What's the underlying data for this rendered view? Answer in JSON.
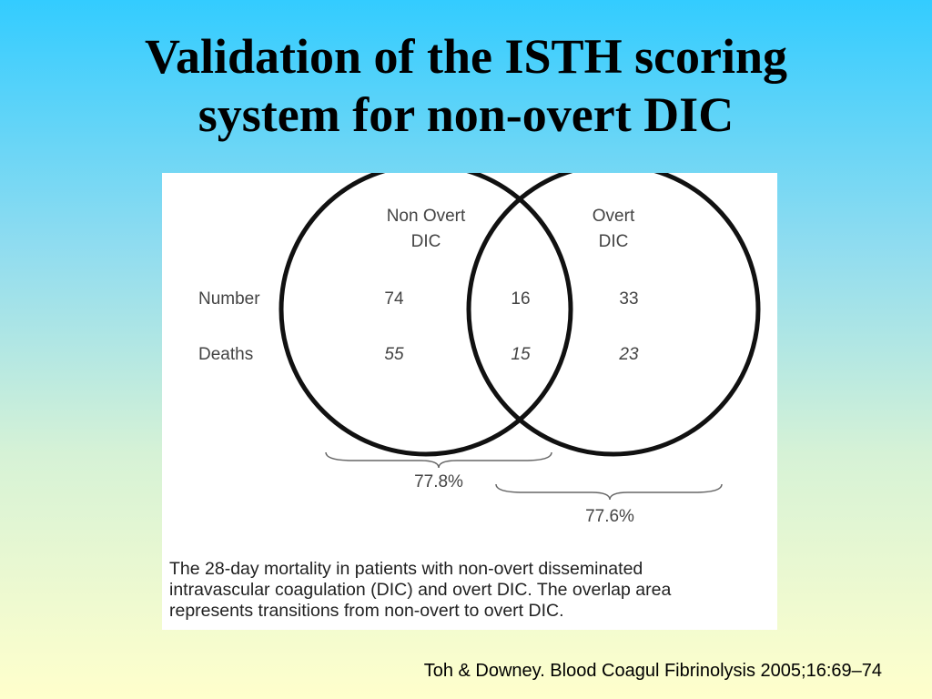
{
  "slide": {
    "title_lines": [
      "Validation of the ISTH scoring",
      "system for non-overt DIC"
    ],
    "citation": "Toh & Downey. Blood Coagul Fibrinolysis 2005;16:69–74"
  },
  "diagram": {
    "left_circle_label": [
      "Non Overt",
      "DIC"
    ],
    "right_circle_label": [
      "Overt",
      "DIC"
    ],
    "row_labels": {
      "number": "Number",
      "deaths": "Deaths"
    },
    "non_overt": {
      "number": "74",
      "deaths": "55"
    },
    "overlap": {
      "number": "16",
      "deaths": "15"
    },
    "overt": {
      "number": "33",
      "deaths": "23"
    },
    "left_bracket_pct": "77.8%",
    "right_bracket_pct": "77.6%",
    "caption_lines": [
      "The 28-day mortality in patients with non-overt disseminated",
      "intravascular coagulation (DIC) and overt DIC. The overlap area",
      "represents transitions from non-overt to overt DIC."
    ]
  }
}
